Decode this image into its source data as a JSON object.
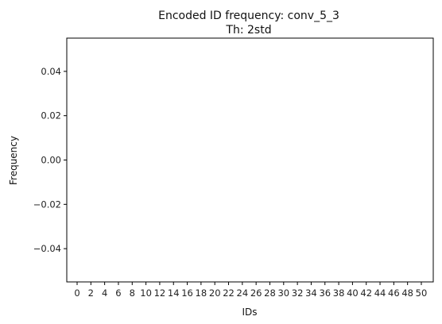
{
  "chart_data": {
    "type": "bar",
    "title": "Encoded ID frequency: conv_5_3",
    "subtitle": "Th: 2std",
    "xlabel": "IDs",
    "ylabel": "Frequency",
    "ylim": [
      -0.055,
      0.055
    ],
    "yticks": [
      "0.04",
      "0.02",
      "0.00",
      "−0.02",
      "−0.04"
    ],
    "ytick_values": [
      0.04,
      0.02,
      0.0,
      -0.02,
      -0.04
    ],
    "categories": [
      "0",
      "2",
      "4",
      "6",
      "8",
      "10",
      "12",
      "14",
      "16",
      "18",
      "20",
      "22",
      "24",
      "26",
      "28",
      "30",
      "32",
      "34",
      "36",
      "38",
      "40",
      "42",
      "44",
      "46",
      "48",
      "50"
    ],
    "values": [
      0,
      0,
      0,
      0,
      0,
      0,
      0,
      0,
      0,
      0,
      0,
      0,
      0,
      0,
      0,
      0,
      0,
      0,
      0,
      0,
      0,
      0,
      0,
      0,
      0,
      0
    ],
    "grid": false
  }
}
